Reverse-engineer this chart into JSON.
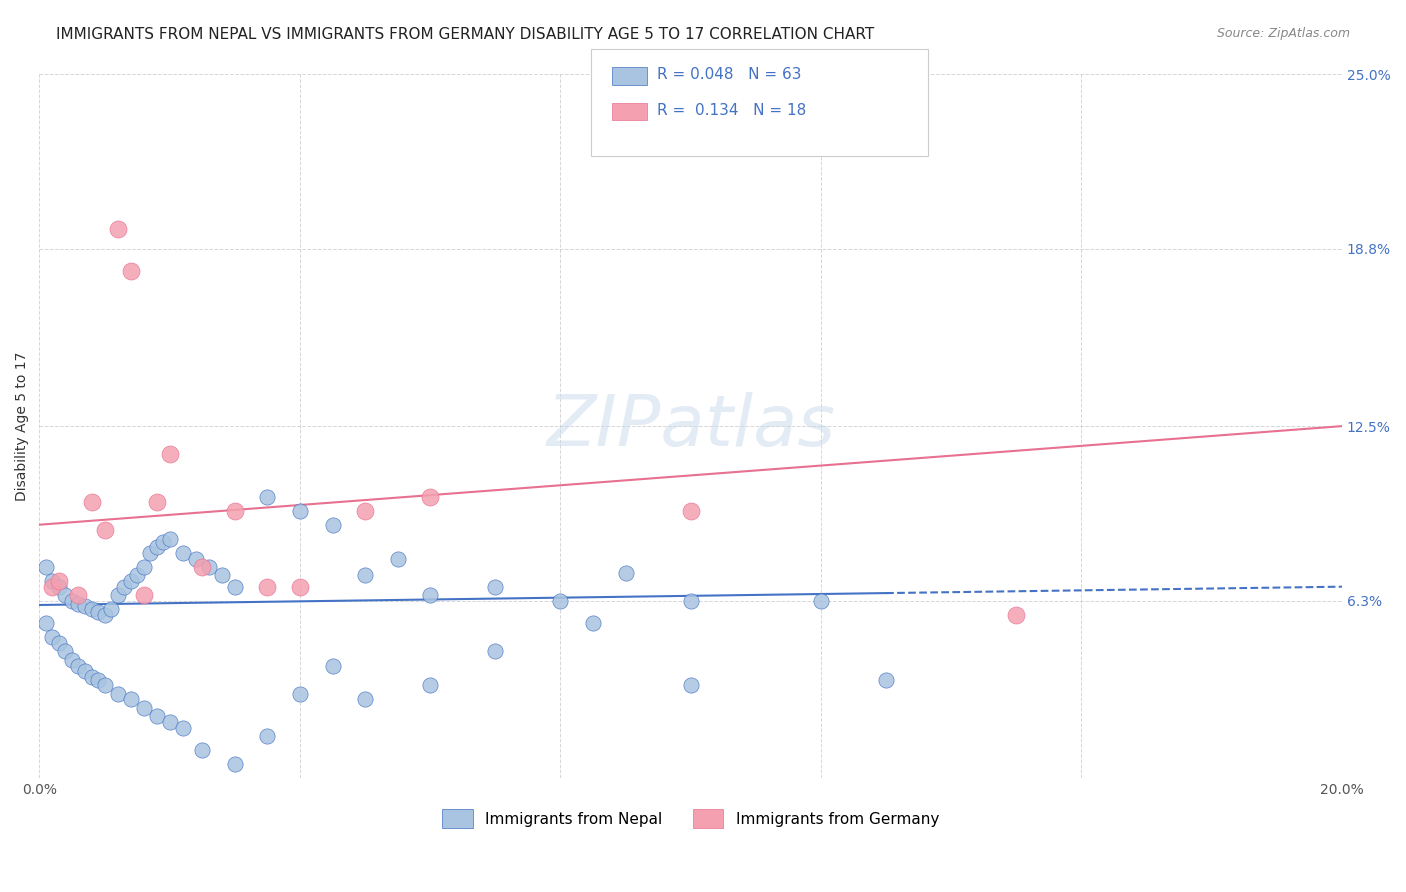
{
  "title": "IMMIGRANTS FROM NEPAL VS IMMIGRANTS FROM GERMANY DISABILITY AGE 5 TO 17 CORRELATION CHART",
  "source": "Source: ZipAtlas.com",
  "xlabel_label": "Immigrants from Nepal",
  "ylabel_label": "Disability Age 5 to 17",
  "x2label_label": "Immigrants from Germany",
  "xlim": [
    0.0,
    0.2
  ],
  "ylim": [
    0.0,
    0.25
  ],
  "xticks": [
    0.0,
    0.04,
    0.08,
    0.12,
    0.16,
    0.2
  ],
  "xticklabels": [
    "0.0%",
    "",
    "",
    "",
    "",
    "20.0%"
  ],
  "yticks": [
    0.0,
    0.063,
    0.125,
    0.188,
    0.25
  ],
  "yticklabels": [
    "",
    "6.3%",
    "12.5%",
    "18.8%",
    "25.0%"
  ],
  "nepal_color": "#a8c4e0",
  "germany_color": "#f4a0b0",
  "nepal_line_color": "#4472c4",
  "germany_line_color": "#e87090",
  "nepal_R": 0.048,
  "nepal_N": 63,
  "germany_R": 0.134,
  "germany_N": 18,
  "nepal_scatter_x": [
    0.001,
    0.002,
    0.003,
    0.004,
    0.005,
    0.006,
    0.007,
    0.008,
    0.009,
    0.01,
    0.011,
    0.012,
    0.013,
    0.014,
    0.015,
    0.016,
    0.017,
    0.018,
    0.019,
    0.02,
    0.022,
    0.024,
    0.026,
    0.028,
    0.03,
    0.035,
    0.04,
    0.045,
    0.05,
    0.055,
    0.06,
    0.07,
    0.08,
    0.09,
    0.1,
    0.12,
    0.001,
    0.002,
    0.003,
    0.004,
    0.005,
    0.006,
    0.007,
    0.008,
    0.009,
    0.01,
    0.012,
    0.014,
    0.016,
    0.018,
    0.02,
    0.022,
    0.025,
    0.03,
    0.035,
    0.04,
    0.045,
    0.05,
    0.06,
    0.07,
    0.085,
    0.1,
    0.13
  ],
  "nepal_scatter_y": [
    0.075,
    0.07,
    0.068,
    0.065,
    0.063,
    0.062,
    0.061,
    0.06,
    0.059,
    0.058,
    0.06,
    0.065,
    0.068,
    0.07,
    0.072,
    0.075,
    0.08,
    0.082,
    0.084,
    0.085,
    0.08,
    0.078,
    0.075,
    0.072,
    0.068,
    0.1,
    0.095,
    0.09,
    0.072,
    0.078,
    0.065,
    0.068,
    0.063,
    0.073,
    0.063,
    0.063,
    0.055,
    0.05,
    0.048,
    0.045,
    0.042,
    0.04,
    0.038,
    0.036,
    0.035,
    0.033,
    0.03,
    0.028,
    0.025,
    0.022,
    0.02,
    0.018,
    0.01,
    0.005,
    0.015,
    0.03,
    0.04,
    0.028,
    0.033,
    0.045,
    0.055,
    0.033,
    0.035
  ],
  "germany_scatter_x": [
    0.002,
    0.003,
    0.006,
    0.008,
    0.01,
    0.012,
    0.014,
    0.016,
    0.018,
    0.02,
    0.025,
    0.03,
    0.035,
    0.04,
    0.05,
    0.06,
    0.1,
    0.15
  ],
  "germany_scatter_y": [
    0.068,
    0.07,
    0.065,
    0.098,
    0.088,
    0.195,
    0.18,
    0.065,
    0.098,
    0.115,
    0.075,
    0.095,
    0.068,
    0.068,
    0.095,
    0.1,
    0.095,
    0.058
  ],
  "nepal_trend_x": [
    0.0,
    0.2
  ],
  "nepal_trend_y_start": 0.0615,
  "nepal_trend_y_end": 0.068,
  "germany_trend_x": [
    0.0,
    0.2
  ],
  "germany_trend_y_start": 0.09,
  "germany_trend_y_end": 0.125,
  "watermark": "ZIPatlas",
  "bg_color": "#ffffff",
  "grid_color": "#cccccc",
  "title_fontsize": 11,
  "axis_label_fontsize": 10,
  "tick_fontsize": 10
}
